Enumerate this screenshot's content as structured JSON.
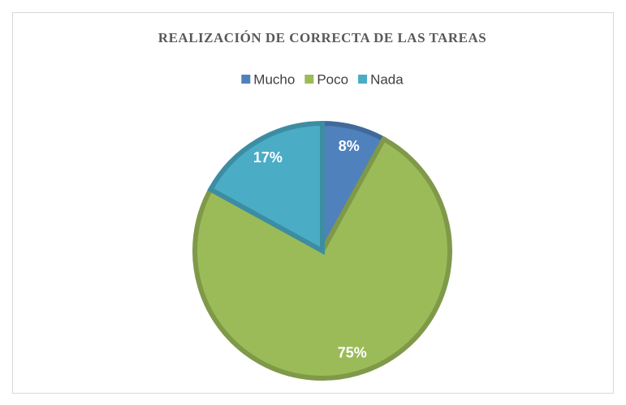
{
  "chart_data": {
    "type": "pie",
    "title": "REALIZACIÓN DE CORRECTA DE LAS TAREAS",
    "categories": [
      "Mucho",
      "Poco",
      "Nada"
    ],
    "values": [
      8,
      75,
      17
    ],
    "value_labels": [
      "8%",
      "75%",
      "17%"
    ],
    "colors": [
      "#4f81bd",
      "#9bbb59",
      "#4bacc6"
    ],
    "legend": "top"
  }
}
